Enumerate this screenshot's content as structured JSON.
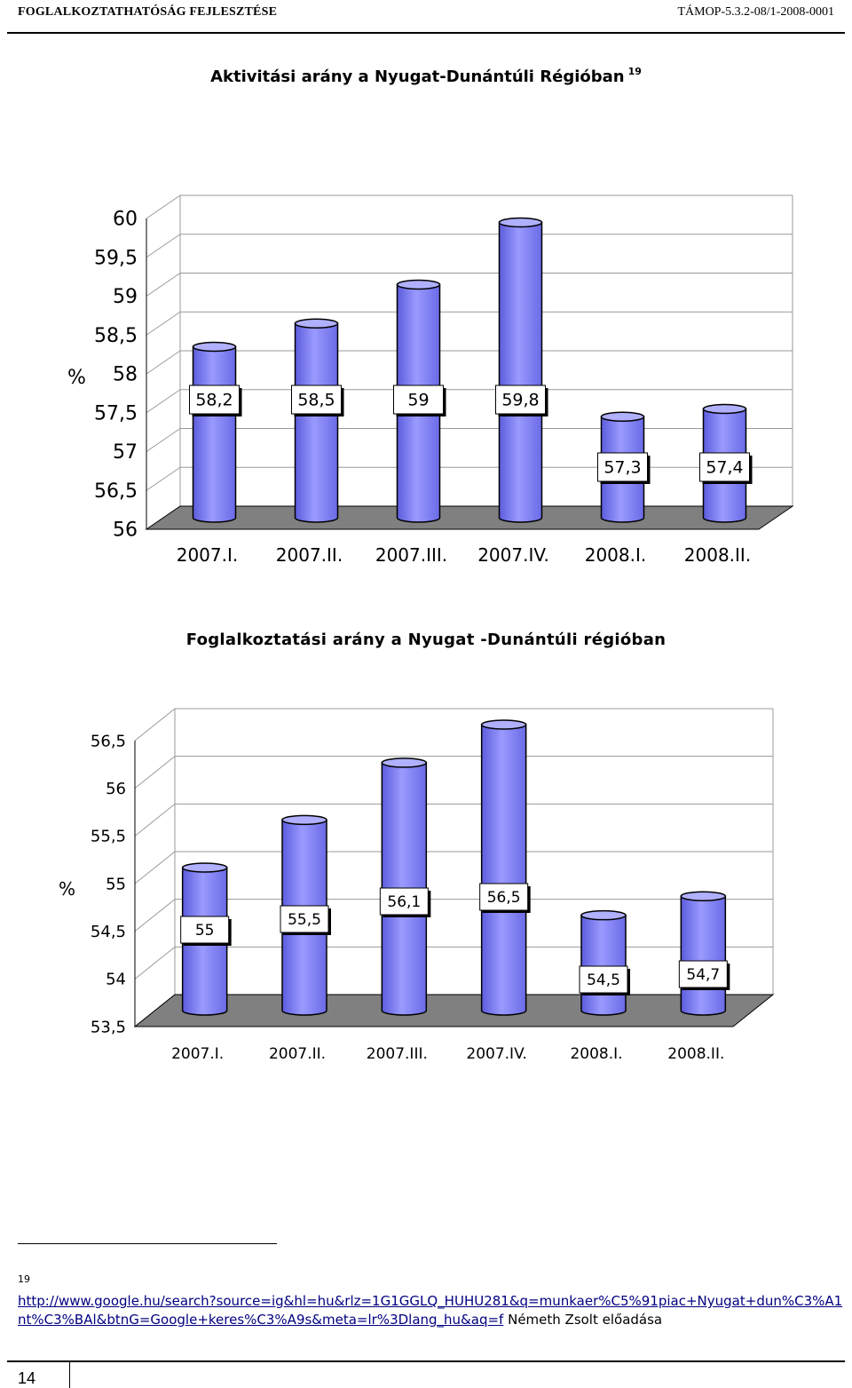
{
  "header": {
    "left": "Foglalkoztathatóság fejlesztése",
    "right": "TÁMOP-5.3.2-08/1-2008-0001"
  },
  "chart_data": [
    {
      "type": "bar",
      "title": "Aktivitási arány a Nyugat-Dunántúli Régióban",
      "title_footnote": "19",
      "ylabel": "%",
      "categories": [
        "2007.I.",
        "2007.II.",
        "2007.III.",
        "2007.IV.",
        "2008.I.",
        "2008.II."
      ],
      "values": [
        58.2,
        58.5,
        59,
        59.8,
        57.3,
        57.4
      ],
      "data_labels": [
        "58,2",
        "58,5",
        "59",
        "59,8",
        "57,3",
        "57,4"
      ],
      "ylim": [
        56,
        60
      ],
      "yticks": [
        "56",
        "56,5",
        "57",
        "57,5",
        "58",
        "58,5",
        "59",
        "59,5",
        "60"
      ],
      "grid": true,
      "bar_color": "#8080ff",
      "style": "3d-cylinder"
    },
    {
      "type": "bar",
      "title": "Foglalkoztatási arány a Nyugat -Dunántúli régióban",
      "ylabel": "%",
      "categories": [
        "2007.I.",
        "2007.II.",
        "2007.III.",
        "2007.IV.",
        "2008.I.",
        "2008.II."
      ],
      "values": [
        55,
        55.5,
        56.1,
        56.5,
        54.5,
        54.7
      ],
      "data_labels": [
        "55",
        "55,5",
        "56,1",
        "56,5",
        "54,5",
        "54,7"
      ],
      "ylim": [
        53.5,
        56.5
      ],
      "yticks": [
        "53,5",
        "54",
        "54,5",
        "55",
        "55,5",
        "56",
        "56,5"
      ],
      "grid": true,
      "bar_color": "#8080ff",
      "style": "3d-cylinder"
    }
  ],
  "footnote": {
    "number": "19",
    "link_text": "http://www.google.hu/search?source=ig&hl=hu&rlz=1G1GGLQ_HUHU281&q=munkaer%C5%91piac+Nyugat+dun%C3%A1nt%C3%BAl&btnG=Google+keres%C3%A9s&meta=lr%3Dlang_hu&aq=f",
    "trailing_text": " Németh Zsolt előadása"
  },
  "page_number": "14"
}
